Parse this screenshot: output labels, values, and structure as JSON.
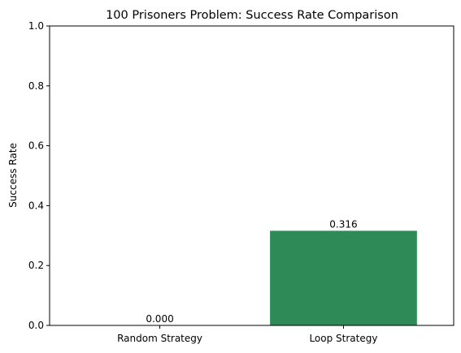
{
  "chart_data": {
    "type": "bar",
    "title": "100 Prisoners Problem: Success Rate Comparison",
    "xlabel": "",
    "ylabel": "Success Rate",
    "categories": [
      "Random Strategy",
      "Loop Strategy"
    ],
    "values": [
      0.0,
      0.316
    ],
    "value_labels": [
      "0.000",
      "0.316"
    ],
    "bar_colors": [
      "#c0504d",
      "#2e8b57"
    ],
    "ylim": [
      0,
      1.0
    ],
    "yticks": [
      0.0,
      0.2,
      0.4,
      0.6,
      0.8,
      1.0
    ],
    "ytick_labels": [
      "0.0",
      "0.2",
      "0.4",
      "0.6",
      "0.8",
      "1.0"
    ],
    "grid": false,
    "legend": false
  }
}
